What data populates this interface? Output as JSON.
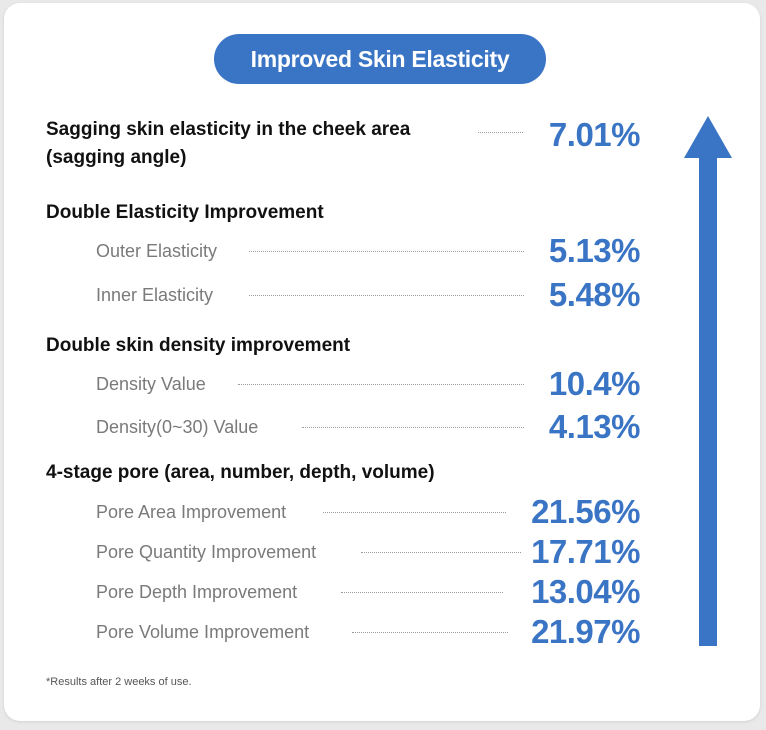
{
  "title": "Improved Skin Elasticity",
  "top_item": {
    "label_line1": "Sagging skin elasticity in the cheek area",
    "label_line2": "(sagging angle)",
    "value": "7.01%"
  },
  "sections": [
    {
      "heading": "Double Elasticity Improvement",
      "items": [
        {
          "label": "Outer Elasticity",
          "value": "5.13%"
        },
        {
          "label": "Inner Elasticity",
          "value": "5.48%"
        }
      ]
    },
    {
      "heading": "Double skin density improvement",
      "items": [
        {
          "label": "Density Value",
          "value": "10.4%"
        },
        {
          "label": "Density(0~30) Value",
          "value": "4.13%"
        }
      ]
    },
    {
      "heading": "4-stage pore (area, number, depth, volume)",
      "items": [
        {
          "label": "Pore Area Improvement",
          "value": "21.56%"
        },
        {
          "label": "Pore Quantity Improvement",
          "value": "17.71%"
        },
        {
          "label": "Pore Depth Improvement",
          "value": "13.04%"
        },
        {
          "label": "Pore Volume Improvement",
          "value": "21.97%"
        }
      ]
    }
  ],
  "footnote": "*Results after 2 weeks of use.",
  "colors": {
    "accent": "#3a74c4",
    "heading": "#111111",
    "sublabel": "#7a7a7a"
  },
  "icons": {
    "arrow": "up-arrow-icon"
  }
}
